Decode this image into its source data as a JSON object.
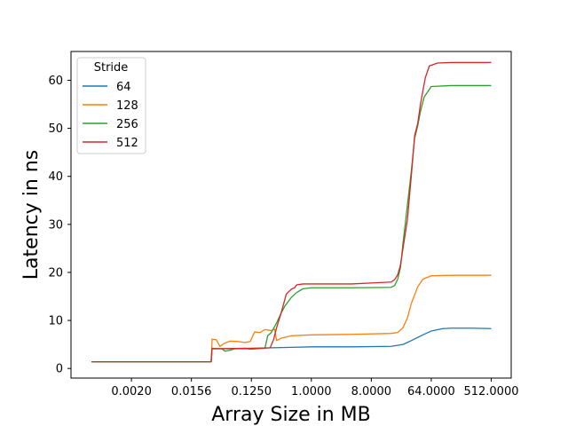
{
  "chart_data": {
    "type": "line",
    "title": "",
    "xlabel": "Array Size in MB",
    "ylabel": "Latency in ns",
    "x_scale": "log2",
    "xlim": [
      0.00024,
      1024
    ],
    "ylim": [
      -2,
      66
    ],
    "x_ticks": [
      {
        "value": 0.001953125,
        "label": "0.0020"
      },
      {
        "value": 0.015625,
        "label": "0.0156"
      },
      {
        "value": 0.125,
        "label": "0.1250"
      },
      {
        "value": 1,
        "label": "1.0000"
      },
      {
        "value": 8,
        "label": "8.0000"
      },
      {
        "value": 64,
        "label": "64.0000"
      },
      {
        "value": 512,
        "label": "512.0000"
      }
    ],
    "y_ticks": [
      0,
      10,
      20,
      30,
      40,
      50,
      60
    ],
    "grid": false,
    "legend": {
      "title": "Stride",
      "position": "top-left"
    },
    "series": [
      {
        "name": "64",
        "color": "#1f77b4",
        "points": [
          [
            0.00049,
            1.4
          ],
          [
            0.0039,
            1.4
          ],
          [
            0.031,
            1.4
          ],
          [
            0.032,
            4.1
          ],
          [
            0.125,
            4.1
          ],
          [
            0.25,
            4.3
          ],
          [
            0.5,
            4.4
          ],
          [
            1,
            4.5
          ],
          [
            4,
            4.5
          ],
          [
            16,
            4.6
          ],
          [
            24,
            5.0
          ],
          [
            32,
            5.8
          ],
          [
            48,
            7.0
          ],
          [
            64,
            7.8
          ],
          [
            96,
            8.3
          ],
          [
            128,
            8.4
          ],
          [
            256,
            8.4
          ],
          [
            512,
            8.3
          ]
        ]
      },
      {
        "name": "128",
        "color": "#ff7f0e",
        "points": [
          [
            0.00049,
            1.4
          ],
          [
            0.0039,
            1.4
          ],
          [
            0.031,
            1.4
          ],
          [
            0.032,
            6.1
          ],
          [
            0.037,
            6.0
          ],
          [
            0.042,
            4.6
          ],
          [
            0.05,
            5.3
          ],
          [
            0.06,
            5.7
          ],
          [
            0.08,
            5.6
          ],
          [
            0.1,
            5.4
          ],
          [
            0.12,
            5.6
          ],
          [
            0.14,
            7.6
          ],
          [
            0.17,
            7.5
          ],
          [
            0.2,
            8.1
          ],
          [
            0.25,
            7.9
          ],
          [
            0.28,
            8.2
          ],
          [
            0.3,
            5.8
          ],
          [
            0.35,
            6.3
          ],
          [
            0.5,
            6.8
          ],
          [
            1,
            7.0
          ],
          [
            4,
            7.1
          ],
          [
            16,
            7.3
          ],
          [
            20,
            7.5
          ],
          [
            24,
            8.5
          ],
          [
            28,
            10.5
          ],
          [
            32,
            13.5
          ],
          [
            40,
            17.0
          ],
          [
            48,
            18.6
          ],
          [
            64,
            19.3
          ],
          [
            128,
            19.4
          ],
          [
            512,
            19.4
          ]
        ]
      },
      {
        "name": "256",
        "color": "#2ca02c",
        "points": [
          [
            0.00049,
            1.4
          ],
          [
            0.0039,
            1.4
          ],
          [
            0.031,
            1.4
          ],
          [
            0.032,
            4.2
          ],
          [
            0.045,
            4.1
          ],
          [
            0.05,
            3.6
          ],
          [
            0.06,
            3.8
          ],
          [
            0.07,
            4.1
          ],
          [
            0.1,
            4.2
          ],
          [
            0.12,
            4.0
          ],
          [
            0.2,
            4.2
          ],
          [
            0.22,
            6.8
          ],
          [
            0.25,
            7.5
          ],
          [
            0.3,
            9.5
          ],
          [
            0.35,
            11.5
          ],
          [
            0.4,
            13.0
          ],
          [
            0.5,
            14.8
          ],
          [
            0.6,
            15.8
          ],
          [
            0.75,
            16.6
          ],
          [
            1,
            16.8
          ],
          [
            4,
            16.8
          ],
          [
            16,
            16.9
          ],
          [
            18,
            17.3
          ],
          [
            20,
            18.6
          ],
          [
            22,
            21.0
          ],
          [
            24,
            26.0
          ],
          [
            28,
            34.0
          ],
          [
            32,
            41.0
          ],
          [
            36,
            48.0
          ],
          [
            40,
            50.5
          ],
          [
            44,
            53.5
          ],
          [
            50,
            56.5
          ],
          [
            64,
            58.7
          ],
          [
            128,
            58.9
          ],
          [
            512,
            58.9
          ]
        ]
      },
      {
        "name": "512",
        "color": "#d62728",
        "points": [
          [
            0.00049,
            1.4
          ],
          [
            0.0039,
            1.4
          ],
          [
            0.031,
            1.4
          ],
          [
            0.032,
            4.1
          ],
          [
            0.125,
            4.2
          ],
          [
            0.24,
            4.3
          ],
          [
            0.27,
            6.0
          ],
          [
            0.3,
            8.5
          ],
          [
            0.35,
            11.5
          ],
          [
            0.42,
            15.5
          ],
          [
            0.5,
            16.5
          ],
          [
            0.56,
            16.8
          ],
          [
            0.6,
            17.4
          ],
          [
            0.75,
            17.6
          ],
          [
            1,
            17.6
          ],
          [
            4,
            17.6
          ],
          [
            8,
            17.8
          ],
          [
            16,
            18.0
          ],
          [
            18,
            18.5
          ],
          [
            20,
            19.5
          ],
          [
            22,
            21.5
          ],
          [
            24,
            25.0
          ],
          [
            28,
            31.0
          ],
          [
            32,
            40.0
          ],
          [
            36,
            48.5
          ],
          [
            40,
            51.0
          ],
          [
            44,
            55.0
          ],
          [
            52,
            60.5
          ],
          [
            60,
            63.0
          ],
          [
            80,
            63.6
          ],
          [
            128,
            63.7
          ],
          [
            512,
            63.7
          ]
        ]
      }
    ]
  }
}
